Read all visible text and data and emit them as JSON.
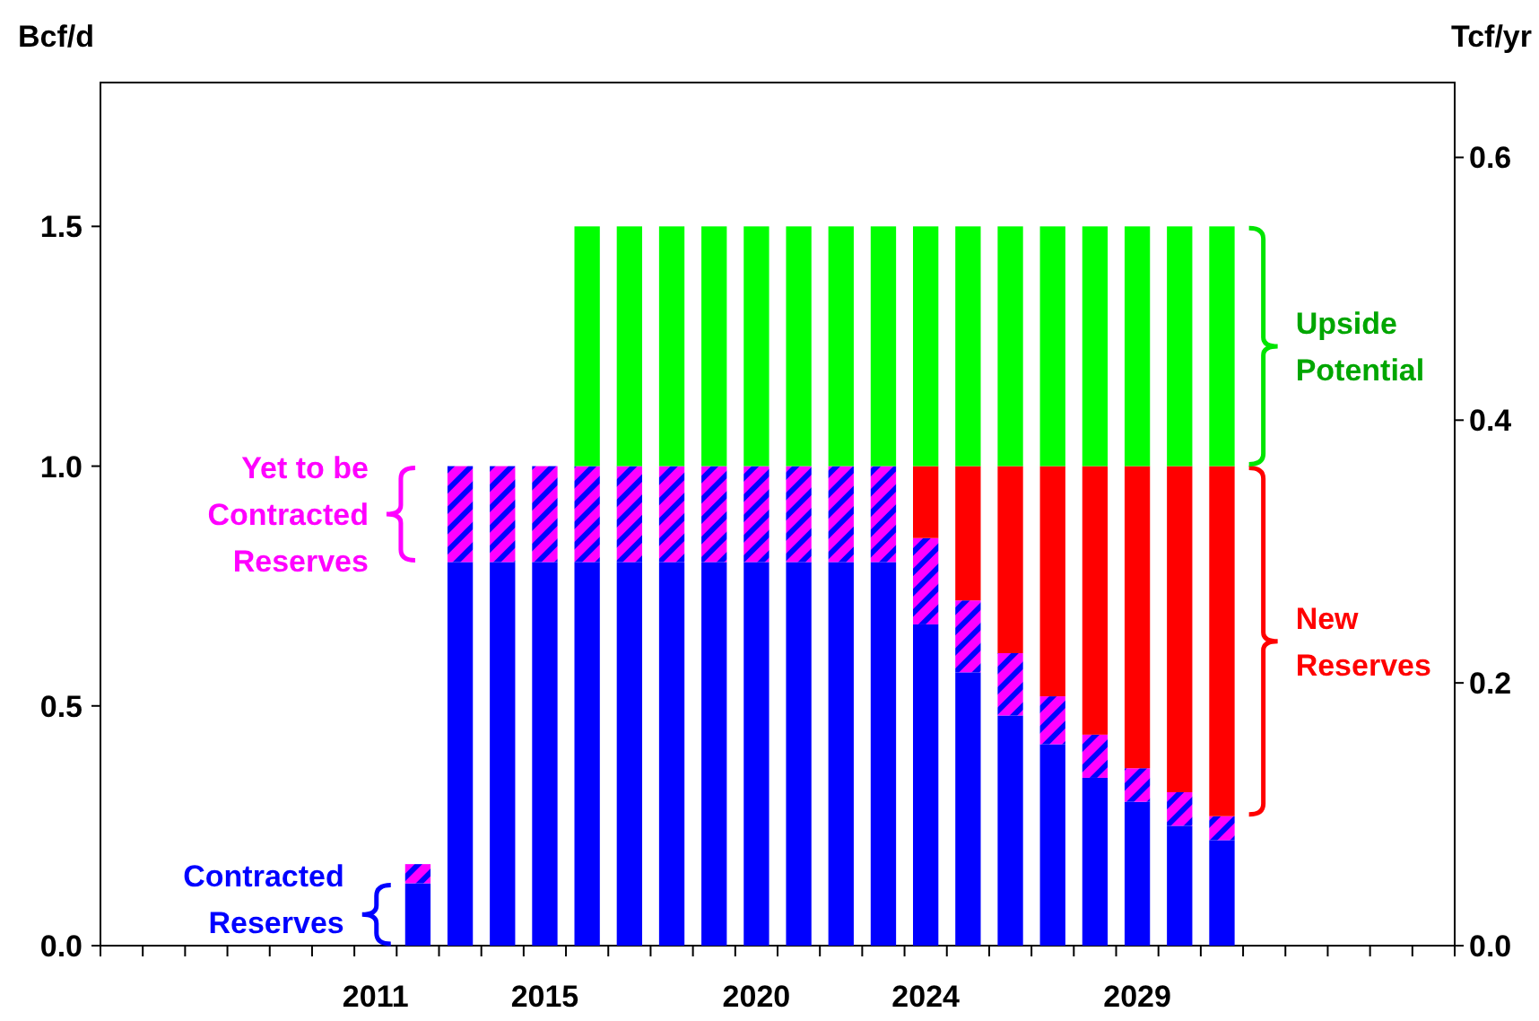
{
  "chart_data": {
    "type": "bar",
    "stacked": true,
    "ylabel": "Bcf/d",
    "y2label": "Tcf/yr",
    "categories": [
      null,
      null,
      null,
      null,
      null,
      null,
      "2011",
      null,
      null,
      null,
      "2015",
      null,
      null,
      null,
      null,
      "2020",
      null,
      null,
      null,
      "2024",
      null,
      null,
      null,
      null,
      "2029",
      null,
      null,
      null,
      null,
      null,
      null,
      null
    ],
    "series": [
      {
        "name": "Contracted Reserves",
        "color": "#0000ff",
        "values": [
          null,
          null,
          null,
          null,
          null,
          null,
          null,
          0.13,
          0.8,
          0.8,
          0.8,
          0.8,
          0.8,
          0.8,
          0.8,
          0.8,
          0.8,
          0.8,
          0.8,
          0.67,
          0.57,
          0.48,
          0.42,
          0.35,
          0.3,
          0.25,
          0.22,
          null,
          null,
          null,
          null,
          null
        ]
      },
      {
        "name": "Yet to be Contracted Reserves",
        "color": "#ff00ff",
        "values": [
          null,
          null,
          null,
          null,
          null,
          null,
          null,
          0.04,
          0.2,
          0.2,
          0.2,
          0.2,
          0.2,
          0.2,
          0.2,
          0.2,
          0.2,
          0.2,
          0.2,
          0.18,
          0.15,
          0.13,
          0.1,
          0.09,
          0.07,
          0.07,
          0.05,
          null,
          null,
          null,
          null,
          null
        ]
      },
      {
        "name": "New Reserves",
        "color": "#ff0000",
        "values": [
          null,
          null,
          null,
          null,
          null,
          null,
          null,
          null,
          null,
          null,
          null,
          null,
          null,
          null,
          null,
          null,
          null,
          null,
          null,
          0.15,
          0.28,
          0.39,
          0.48,
          0.56,
          0.63,
          0.68,
          0.73,
          null,
          null,
          null,
          null,
          null
        ]
      },
      {
        "name": "Upside Potential",
        "color": "#00ff00",
        "values": [
          null,
          null,
          null,
          null,
          null,
          null,
          null,
          null,
          null,
          null,
          null,
          0.5,
          0.5,
          0.5,
          0.5,
          0.5,
          0.5,
          0.5,
          0.5,
          0.5,
          0.5,
          0.5,
          0.5,
          0.5,
          0.5,
          0.5,
          0.5,
          null,
          null,
          null,
          null,
          null
        ]
      }
    ],
    "ylim": [
      0,
      1.8
    ],
    "yticks": [
      {
        "value": 0,
        "label": "0.0"
      },
      {
        "value": 0.5,
        "label": "0.5"
      },
      {
        "value": 1,
        "label": "1.0"
      },
      {
        "value": 1.5,
        "label": "1.5"
      }
    ],
    "y2lim": [
      0,
      0.657
    ],
    "y2ticks": [
      {
        "value": 0,
        "label": "0.0"
      },
      {
        "value": 0.2,
        "label": "0.2"
      },
      {
        "value": 0.4,
        "label": "0.4"
      },
      {
        "value": 0.6,
        "label": "0.6"
      }
    ],
    "grid": false,
    "legend": "bottom left"
  }
}
